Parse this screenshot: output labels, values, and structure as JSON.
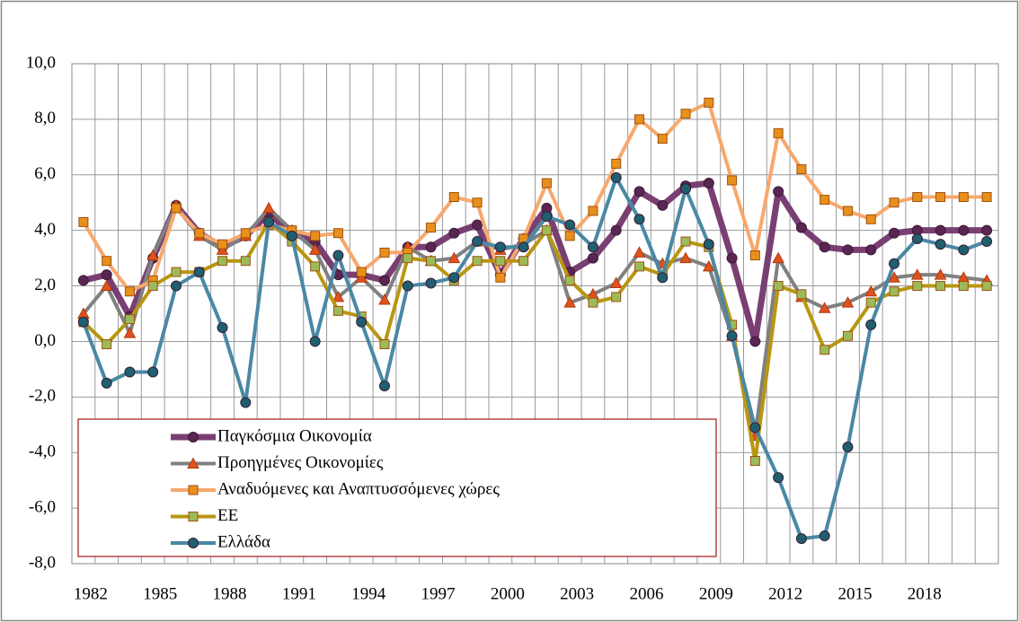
{
  "chart_data": {
    "type": "line",
    "categories": [
      "1982",
      null,
      null,
      "1985",
      null,
      null,
      "1988",
      null,
      null,
      "1991",
      null,
      null,
      "1994",
      null,
      null,
      "1997",
      null,
      null,
      "2000",
      null,
      null,
      "2003",
      null,
      null,
      "2006",
      null,
      null,
      "2009",
      null,
      null,
      "2012",
      null,
      null,
      "2015",
      null,
      null,
      "2018",
      null,
      null,
      null
    ],
    "ylim": [
      -8,
      10
    ],
    "yticks": [
      {
        "value": -8,
        "label": "-8,0"
      },
      {
        "value": -6,
        "label": "-6,0"
      },
      {
        "value": -4,
        "label": "-4,0"
      },
      {
        "value": -2,
        "label": "-2,0"
      },
      {
        "value": 0,
        "label": "0,0"
      },
      {
        "value": 2,
        "label": "2,0"
      },
      {
        "value": 4,
        "label": "4,0"
      },
      {
        "value": 6,
        "label": "6,0"
      },
      {
        "value": 8,
        "label": "8,0"
      },
      {
        "value": 10,
        "label": "10,0"
      }
    ],
    "grid": true,
    "legend": "lower left",
    "series": [
      {
        "name": "Παγκόσμια Οικονομία",
        "color": "#7a3f72",
        "marker": "circle",
        "marker_color": "#5a2552",
        "values": [
          2.2,
          2.4,
          0.9,
          3.0,
          4.9,
          3.9,
          3.4,
          3.8,
          4.6,
          3.9,
          3.6,
          2.4,
          2.4,
          2.2,
          3.4,
          3.4,
          3.9,
          4.2,
          2.4,
          3.7,
          4.8,
          2.5,
          3.0,
          4.0,
          5.4,
          4.9,
          5.6,
          5.7,
          3.0,
          0.0,
          5.4,
          4.1,
          3.4,
          3.3,
          3.3,
          3.9,
          4.0,
          4.0,
          4.0,
          4.0
        ]
      },
      {
        "name": "Προηγμένες Οικονομίες",
        "color": "#808080",
        "marker": "triangle",
        "marker_color": "#e0521c",
        "values": [
          1.0,
          2.0,
          0.3,
          3.1,
          4.9,
          3.8,
          3.3,
          3.8,
          4.8,
          4.0,
          3.3,
          1.6,
          2.3,
          1.5,
          3.4,
          2.9,
          3.0,
          3.6,
          3.3,
          3.5,
          4.0,
          1.4,
          1.7,
          2.1,
          3.2,
          2.8,
          3.0,
          2.7,
          0.2,
          -3.4,
          3.0,
          1.6,
          1.2,
          1.4,
          1.8,
          2.3,
          2.4,
          2.4,
          2.3,
          2.2
        ]
      },
      {
        "name": "Αναδυόμενες και Αναπτυσσόμενες χώρες",
        "color": "#f7a86c",
        "marker": "square",
        "marker_color": "#e8901c",
        "values": [
          4.3,
          2.9,
          1.8,
          2.2,
          4.8,
          3.9,
          3.5,
          3.9,
          4.2,
          4.0,
          3.8,
          3.9,
          2.5,
          3.2,
          3.2,
          4.1,
          5.2,
          5.0,
          2.3,
          3.7,
          5.7,
          3.8,
          4.7,
          6.4,
          8.0,
          7.3,
          8.2,
          8.6,
          5.8,
          3.1,
          7.5,
          6.2,
          5.1,
          4.7,
          4.4,
          5.0,
          5.2,
          5.2,
          5.2,
          5.2
        ]
      },
      {
        "name": "ΕΕ",
        "color": "#b89612",
        "marker": "square",
        "marker_color": "#9bbb59",
        "values": [
          0.7,
          -0.1,
          0.8,
          2.0,
          2.5,
          2.5,
          2.9,
          2.9,
          4.3,
          3.6,
          2.7,
          1.1,
          0.9,
          -0.1,
          3.0,
          2.9,
          2.2,
          2.9,
          2.9,
          2.9,
          4.0,
          2.2,
          1.4,
          1.6,
          2.7,
          2.4,
          3.6,
          3.4,
          0.6,
          -4.3,
          2.0,
          1.7,
          -0.3,
          0.2,
          1.4,
          1.8,
          2.0,
          2.0,
          2.0,
          2.0
        ]
      },
      {
        "name": "Ελλάδα",
        "color": "#4a88a4",
        "marker": "circle",
        "marker_color": "#1f6070",
        "values": [
          0.7,
          -1.5,
          -1.1,
          -1.1,
          2.0,
          2.5,
          0.5,
          -2.2,
          4.3,
          3.8,
          0.0,
          3.1,
          0.7,
          -1.6,
          2.0,
          2.1,
          2.3,
          3.6,
          3.4,
          3.4,
          4.5,
          4.2,
          3.4,
          5.9,
          4.4,
          2.3,
          5.5,
          3.5,
          0.2,
          -3.1,
          -4.9,
          -7.1,
          -7.0,
          -3.8,
          0.6,
          2.8,
          3.7,
          3.5,
          3.3,
          3.6
        ]
      }
    ]
  }
}
